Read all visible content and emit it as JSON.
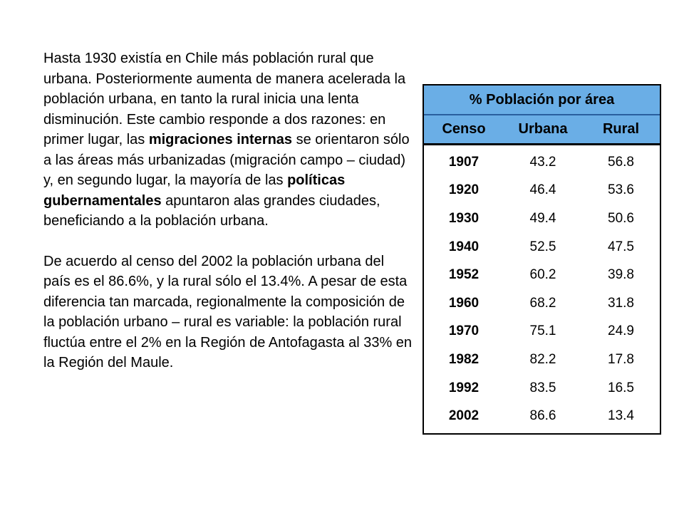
{
  "paragraph1": {
    "part1": "Hasta 1930 existía en Chile más población rural que urbana. Posteriormente aumenta de manera acelerada la población urbana, en tanto la rural inicia una lenta disminución. Este cambio responde a dos razones: en primer lugar, las ",
    "bold1": "migraciones internas",
    "part2": " se orientaron sólo a las áreas más urbanizadas (migración campo – ciudad) y, en segundo lugar, la mayoría de las ",
    "bold2": "políticas gubernamentales",
    "part3": " apuntaron alas grandes ciudades, beneficiando a la población urbana."
  },
  "paragraph2": "De acuerdo al censo del 2002 la población urbana del país es el 86.6%, y la rural sólo el 13.4%. A pesar de esta diferencia tan marcada, regionalmente la composición de la población urbano – rural es variable: la población rural fluctúa entre el 2% en la Región de Antofagasta al 33% en la Región del Maule.",
  "table": {
    "title": "% Población por área",
    "headers": [
      "Censo",
      "Urbana",
      "Rural"
    ],
    "rows": [
      [
        "1907",
        "43.2",
        "56.8"
      ],
      [
        "1920",
        "46.4",
        "53.6"
      ],
      [
        "1930",
        "49.4",
        "50.6"
      ],
      [
        "1940",
        "52.5",
        "47.5"
      ],
      [
        "1952",
        "60.2",
        "39.8"
      ],
      [
        "1960",
        "68.2",
        "31.8"
      ],
      [
        "1970",
        "75.1",
        "24.9"
      ],
      [
        "1982",
        "82.2",
        "17.8"
      ],
      [
        "1992",
        "83.5",
        "16.5"
      ],
      [
        "2002",
        "86.6",
        "13.4"
      ]
    ],
    "header_color": "#6aaee6"
  }
}
